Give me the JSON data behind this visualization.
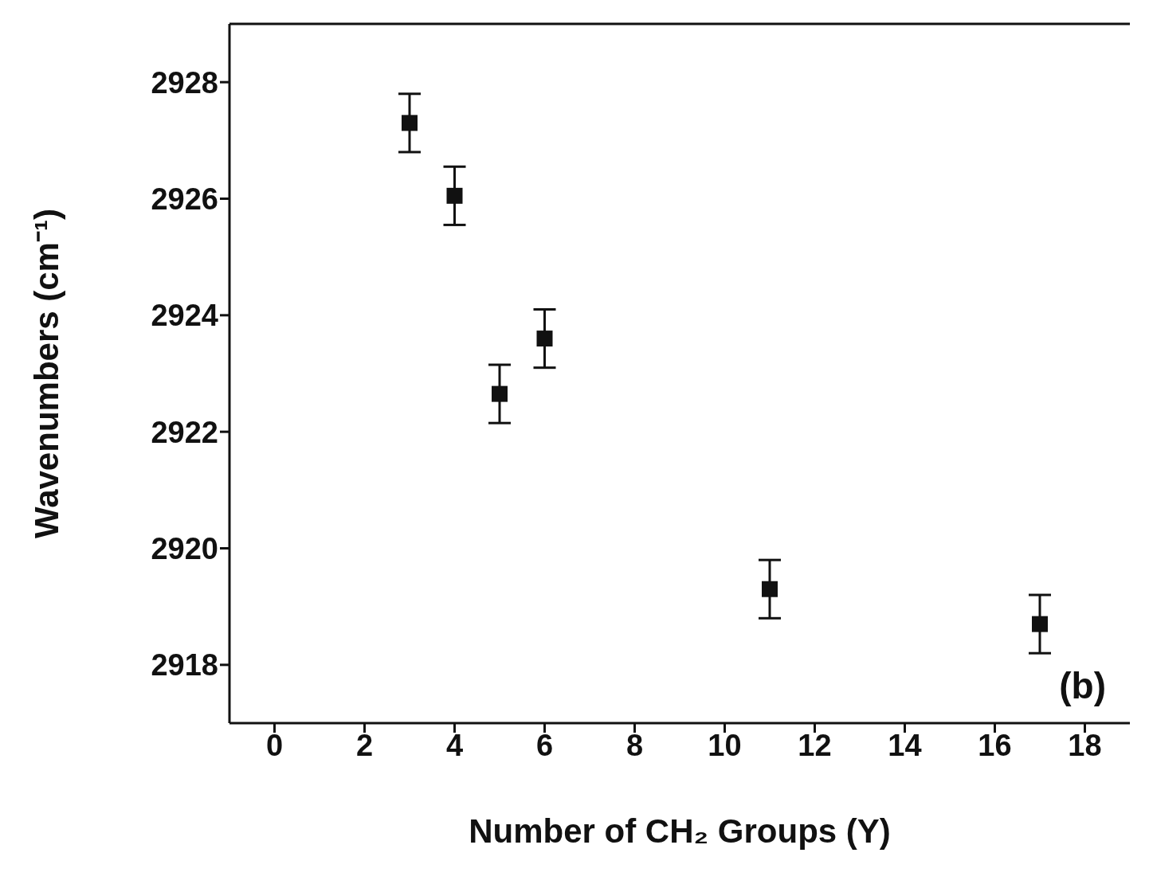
{
  "chart_data": {
    "type": "scatter",
    "xlabel": "Number of CH₂ Groups (Y)",
    "ylabel": "Wavenumbers (cm⁻¹)",
    "x": [
      3,
      4,
      5,
      6,
      11,
      17
    ],
    "series": [
      {
        "color": "#111111",
        "values": [
          2927.3,
          2926.05,
          2922.65,
          2923.6,
          2919.3,
          2918.7
        ],
        "errors": [
          0.5,
          0.5,
          0.5,
          0.5,
          0.5,
          0.5
        ]
      }
    ],
    "xlim": [
      -1,
      19
    ],
    "xticks": [
      0,
      2,
      4,
      6,
      8,
      10,
      12,
      14,
      16,
      18
    ],
    "ylim": [
      2917,
      2929
    ],
    "yticks": [
      2918,
      2920,
      2922,
      2924,
      2926,
      2928
    ],
    "marker": "square",
    "grid": false,
    "legend": false,
    "annotations": [
      "(b)"
    ]
  }
}
